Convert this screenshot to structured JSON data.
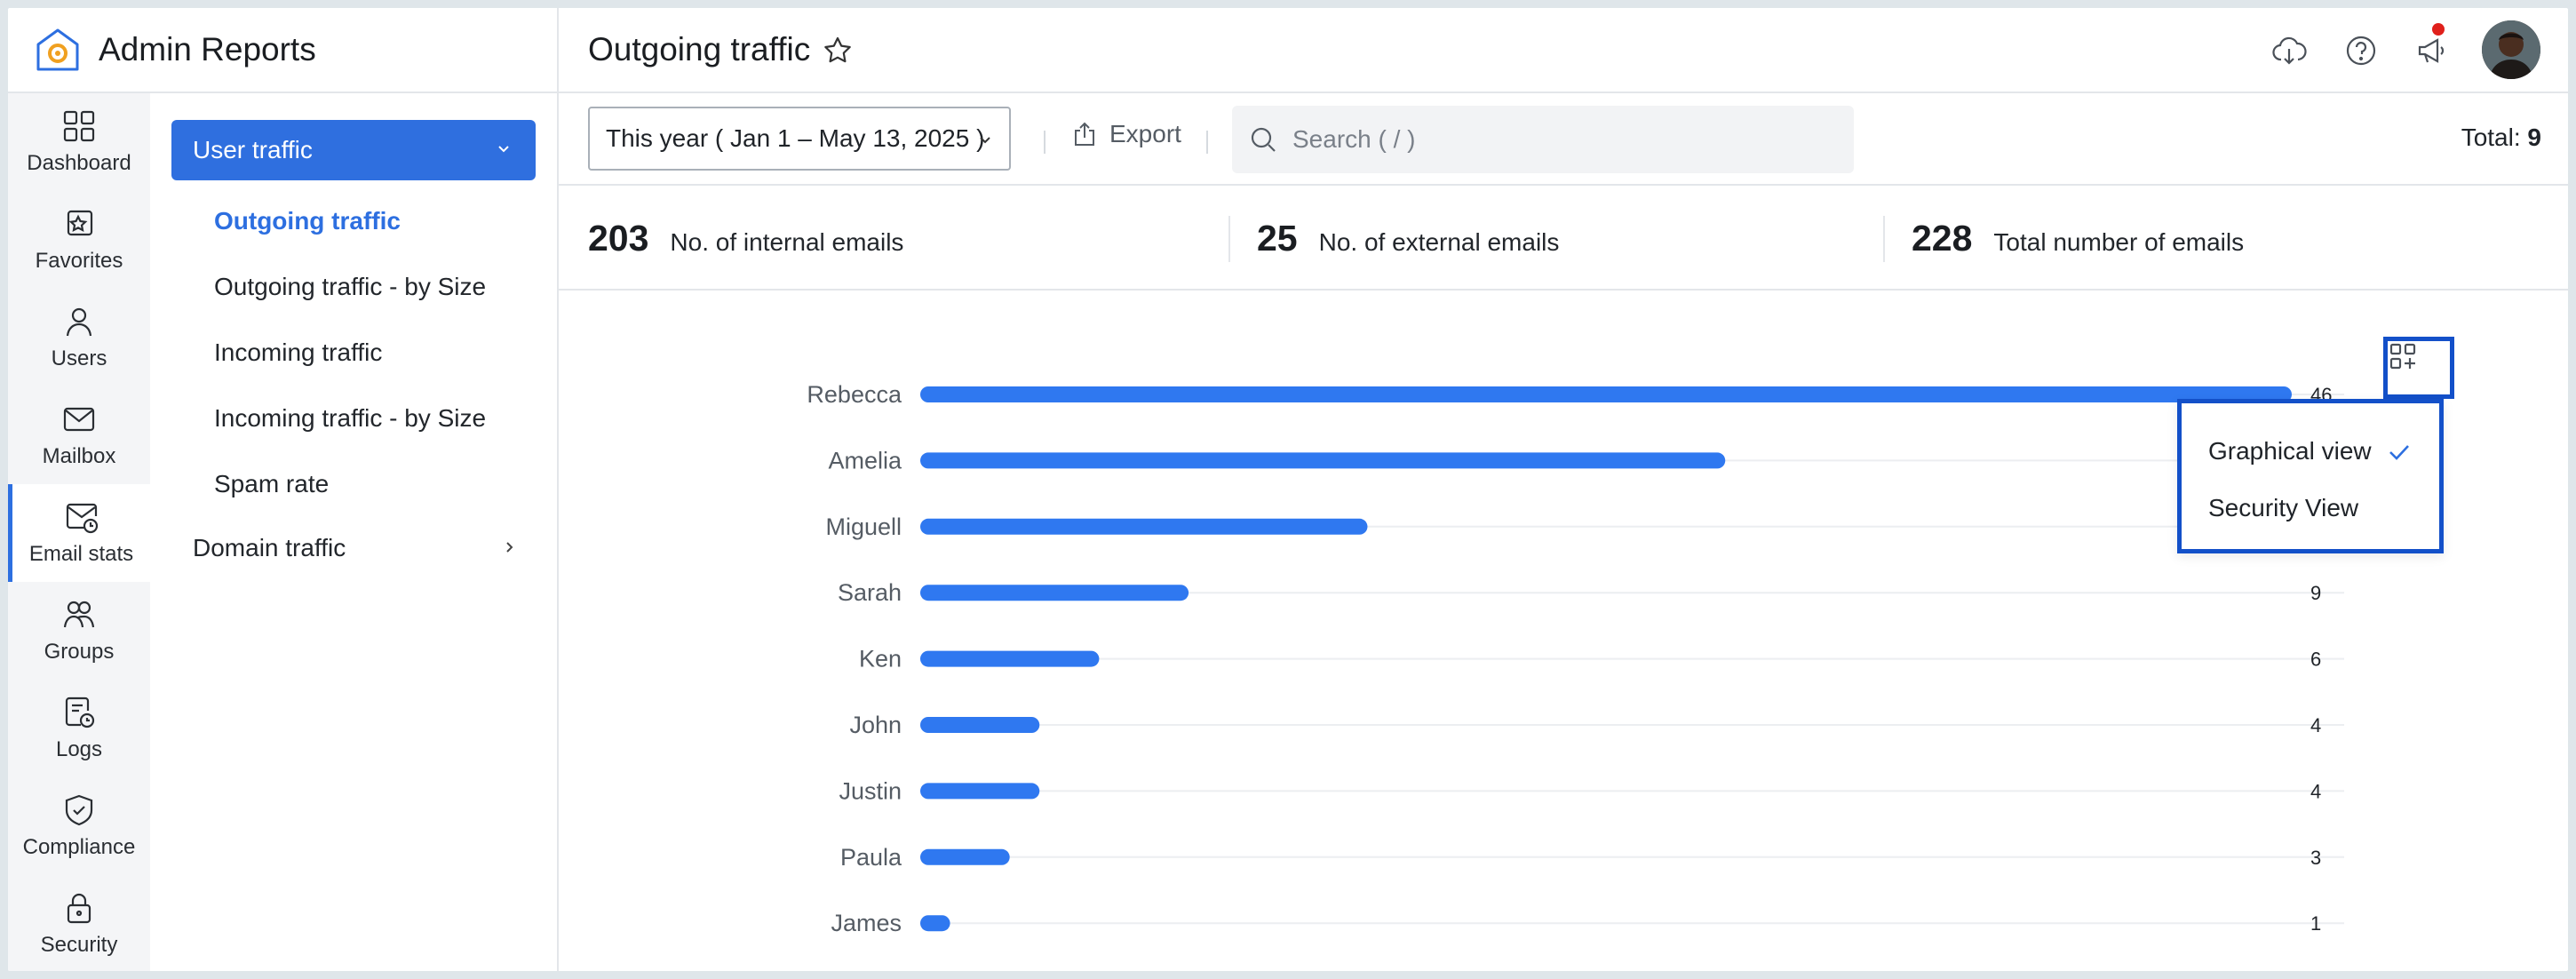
{
  "app": {
    "title": "Admin Reports"
  },
  "rail": [
    {
      "label": "Dashboard",
      "icon": "dashboard-icon"
    },
    {
      "label": "Favorites",
      "icon": "favorites-icon"
    },
    {
      "label": "Users",
      "icon": "user-icon"
    },
    {
      "label": "Mailbox",
      "icon": "mailbox-icon"
    },
    {
      "label": "Email stats",
      "icon": "email-stats-icon",
      "active": true
    },
    {
      "label": "Groups",
      "icon": "groups-icon"
    },
    {
      "label": "Logs",
      "icon": "logs-icon"
    },
    {
      "label": "Compliance",
      "icon": "compliance-icon"
    },
    {
      "label": "Security",
      "icon": "lock-icon"
    }
  ],
  "subnav": {
    "group": "User traffic",
    "items": [
      "Outgoing traffic",
      "Outgoing traffic - by Size",
      "Incoming traffic",
      "Incoming traffic - by Size",
      "Spam rate"
    ],
    "active_index": 0,
    "domain": "Domain traffic"
  },
  "header": {
    "title": "Outgoing traffic",
    "icons": [
      "download-cloud-icon",
      "help-icon",
      "announcement-icon",
      "avatar"
    ]
  },
  "toolbar": {
    "date_range": "This year ( Jan 1 – May 13, 2025 )",
    "export": "Export",
    "search_placeholder": "Search ( / )",
    "total_label": "Total:",
    "total_value": "9"
  },
  "stats": [
    {
      "value": "203",
      "label": "No. of internal emails"
    },
    {
      "value": "25",
      "label": "No. of external emails"
    },
    {
      "value": "228",
      "label": "Total number of emails"
    }
  ],
  "view_menu": {
    "options": [
      "Graphical view",
      "Security View"
    ],
    "selected": "Graphical view"
  },
  "colors": {
    "accent": "#2d6fe0",
    "bar": "#2f78f0",
    "highlight_border": "#1350c9"
  },
  "chart_data": {
    "type": "bar",
    "orientation": "horizontal",
    "categories": [
      "Rebecca",
      "Amelia",
      "Miguell",
      "Sarah",
      "Ken",
      "John",
      "Justin",
      "Paula",
      "James"
    ],
    "values": [
      46,
      27,
      15,
      9,
      6,
      4,
      4,
      3,
      1
    ],
    "xlim": [
      0,
      46
    ],
    "grid": true
  }
}
